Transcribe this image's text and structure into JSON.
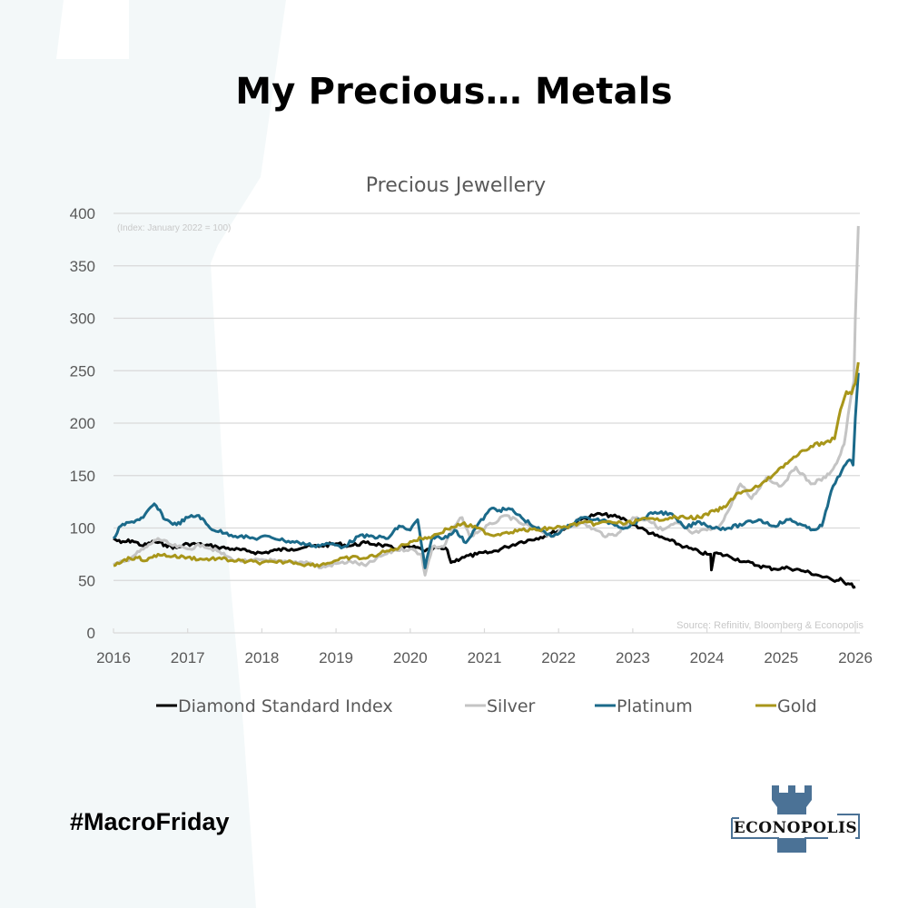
{
  "page": {
    "headline": "My Precious… Metals",
    "hashtag": "#MacroFriday",
    "logo_text": "ECONOPOLIS",
    "colors": {
      "background": "#ffffff",
      "background_shape": "#f3f8f9",
      "logo_blue": "#4b7296"
    }
  },
  "chart_data": {
    "type": "line",
    "title": "Precious Jewellery",
    "note": "(Index: January 2022 = 100)",
    "source": "Source: Refinitiv, Bloomberg & Econopolis",
    "xlabel": "",
    "ylabel": "",
    "xlim": [
      2016,
      2026.05
    ],
    "ylim": [
      0,
      400
    ],
    "x_ticks": [
      "2016",
      "2017",
      "2018",
      "2019",
      "2020",
      "2021",
      "2022",
      "2023",
      "2024",
      "2025",
      "2026"
    ],
    "y_ticks": [
      "0",
      "50",
      "100",
      "150",
      "200",
      "250",
      "300",
      "350",
      "400"
    ],
    "grid": true,
    "legend_position": "bottom",
    "series": [
      {
        "name": "Diamond Standard Index",
        "color": "#000000",
        "x": [
          2016.0,
          2016.1,
          2016.25,
          2016.4,
          2016.55,
          2016.7,
          2016.85,
          2017.0,
          2017.2,
          2017.4,
          2017.6,
          2017.8,
          2018.0,
          2018.2,
          2018.4,
          2018.6,
          2018.8,
          2019.0,
          2019.2,
          2019.4,
          2019.6,
          2019.8,
          2020.0,
          2020.15,
          2020.2,
          2020.35,
          2020.5,
          2020.55,
          2020.7,
          2020.9,
          2021.1,
          2021.3,
          2021.5,
          2021.7,
          2021.9,
          2022.1,
          2022.3,
          2022.5,
          2022.7,
          2022.9,
          2023.1,
          2023.3,
          2023.5,
          2023.7,
          2023.9,
          2024.0,
          2024.05,
          2024.06,
          2024.1,
          2024.3,
          2024.5,
          2024.7,
          2024.9,
          2025.1,
          2025.3,
          2025.5,
          2025.7,
          2025.8,
          2025.85,
          2025.9,
          2026.0
        ],
        "values": [
          90,
          86,
          88,
          83,
          87,
          84,
          81,
          85,
          84,
          82,
          80,
          78,
          76,
          79,
          80,
          82,
          83,
          85,
          83,
          86,
          84,
          80,
          82,
          80,
          78,
          81,
          79,
          67,
          72,
          75,
          77,
          82,
          87,
          90,
          95,
          100,
          108,
          113,
          112,
          108,
          100,
          93,
          88,
          82,
          77,
          75,
          75,
          60,
          76,
          73,
          68,
          64,
          61,
          62,
          59,
          55,
          50,
          52,
          48,
          47,
          44
        ]
      },
      {
        "name": "Silver",
        "color": "#c4c4c4",
        "x": [
          2016.0,
          2016.15,
          2016.3,
          2016.45,
          2016.6,
          2016.8,
          2017.0,
          2017.2,
          2017.4,
          2017.6,
          2017.8,
          2018.0,
          2018.2,
          2018.4,
          2018.6,
          2018.8,
          2019.0,
          2019.2,
          2019.4,
          2019.6,
          2019.8,
          2020.0,
          2020.15,
          2020.2,
          2020.3,
          2020.45,
          2020.6,
          2020.7,
          2020.8,
          2020.95,
          2021.1,
          2021.3,
          2021.5,
          2021.7,
          2021.9,
          2022.1,
          2022.3,
          2022.5,
          2022.65,
          2022.8,
          2023.0,
          2023.2,
          2023.4,
          2023.6,
          2023.8,
          2024.0,
          2024.15,
          2024.3,
          2024.45,
          2024.6,
          2024.8,
          2025.0,
          2025.2,
          2025.4,
          2025.6,
          2025.75,
          2025.85,
          2025.93,
          2025.98,
          2026.0,
          2026.04
        ],
        "values": [
          65,
          68,
          75,
          82,
          90,
          83,
          80,
          84,
          78,
          70,
          68,
          70,
          68,
          67,
          68,
          62,
          66,
          68,
          64,
          73,
          79,
          80,
          75,
          55,
          82,
          82,
          102,
          110,
          92,
          98,
          104,
          112,
          104,
          100,
          92,
          100,
          105,
          98,
          92,
          95,
          110,
          108,
          98,
          105,
          95,
          98,
          100,
          118,
          142,
          128,
          148,
          140,
          158,
          142,
          148,
          162,
          180,
          220,
          240,
          300,
          388
        ]
      },
      {
        "name": "Platinum",
        "color": "#1b6a8a",
        "x": [
          2016.0,
          2016.1,
          2016.25,
          2016.4,
          2016.55,
          2016.7,
          2016.85,
          2017.0,
          2017.15,
          2017.3,
          2017.5,
          2017.7,
          2017.9,
          2018.1,
          2018.3,
          2018.5,
          2018.7,
          2018.9,
          2019.1,
          2019.3,
          2019.5,
          2019.7,
          2019.85,
          2020.0,
          2020.1,
          2020.2,
          2020.3,
          2020.45,
          2020.6,
          2020.75,
          2020.9,
          2021.1,
          2021.2,
          2021.35,
          2021.5,
          2021.7,
          2021.9,
          2022.1,
          2022.3,
          2022.5,
          2022.7,
          2022.9,
          2023.1,
          2023.3,
          2023.5,
          2023.7,
          2023.9,
          2024.1,
          2024.3,
          2024.5,
          2024.7,
          2024.9,
          2025.1,
          2025.25,
          2025.4,
          2025.55,
          2025.7,
          2025.82,
          2025.92,
          2025.97,
          2026.0,
          2026.04
        ],
        "values": [
          90,
          102,
          106,
          110,
          123,
          108,
          103,
          110,
          112,
          100,
          95,
          92,
          90,
          92,
          88,
          86,
          83,
          85,
          82,
          92,
          92,
          90,
          102,
          98,
          108,
          62,
          92,
          90,
          98,
          86,
          102,
          119,
          117,
          118,
          110,
          100,
          92,
          100,
          110,
          108,
          105,
          100,
          108,
          115,
          114,
          100,
          106,
          100,
          100,
          104,
          108,
          102,
          108,
          104,
          98,
          102,
          140,
          155,
          165,
          160,
          205,
          248
        ]
      },
      {
        "name": "Gold",
        "color": "#a8961a",
        "x": [
          2016.0,
          2016.15,
          2016.3,
          2016.45,
          2016.6,
          2016.8,
          2017.0,
          2017.2,
          2017.4,
          2017.6,
          2017.8,
          2018.0,
          2018.2,
          2018.4,
          2018.6,
          2018.8,
          2019.0,
          2019.2,
          2019.4,
          2019.6,
          2019.8,
          2020.0,
          2020.15,
          2020.3,
          2020.5,
          2020.7,
          2020.9,
          2021.1,
          2021.3,
          2021.5,
          2021.7,
          2021.9,
          2022.1,
          2022.3,
          2022.5,
          2022.7,
          2022.9,
          2023.1,
          2023.3,
          2023.5,
          2023.7,
          2023.9,
          2024.1,
          2024.25,
          2024.4,
          2024.6,
          2024.8,
          2025.0,
          2025.2,
          2025.4,
          2025.6,
          2025.72,
          2025.8,
          2025.88,
          2025.95,
          2026.0,
          2026.04
        ],
        "values": [
          64,
          70,
          72,
          69,
          75,
          73,
          72,
          70,
          71,
          69,
          68,
          67,
          67,
          68,
          65,
          65,
          69,
          72,
          71,
          76,
          80,
          87,
          90,
          92,
          99,
          104,
          100,
          93,
          96,
          98,
          98,
          100,
          101,
          105,
          104,
          106,
          104,
          108,
          108,
          110,
          110,
          110,
          116,
          120,
          133,
          136,
          145,
          158,
          168,
          178,
          182,
          185,
          213,
          230,
          228,
          238,
          258
        ]
      }
    ]
  }
}
